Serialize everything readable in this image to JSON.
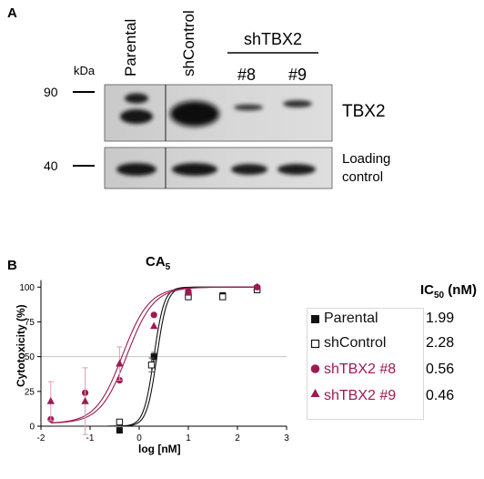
{
  "panel_a": {
    "letter": "A",
    "kda_label": "kDa",
    "markers": [
      "90",
      "40"
    ],
    "lanes": [
      "Parental",
      "shControl",
      "#8",
      "#9"
    ],
    "group_label": "shTBX2",
    "band_labels": [
      "TBX2",
      "Loading",
      "control"
    ]
  },
  "panel_b": {
    "letter": "B",
    "ic50_header_main": "IC",
    "ic50_header_sub": "50",
    "ic50_header_unit": "(nM)",
    "legend": [
      {
        "name": "Parental",
        "ic50": "1.99",
        "color": "#111111",
        "marker": "square-filled"
      },
      {
        "name": "shControl",
        "ic50": "2.28",
        "color": "#111111",
        "marker": "square-open"
      },
      {
        "name": "shTBX2 #8",
        "ic50": "0.56",
        "color": "#9c1a52",
        "marker": "circle"
      },
      {
        "name": "shTBX2 #9",
        "ic50": "0.46",
        "color": "#9c1a52",
        "marker": "triangle"
      }
    ]
  },
  "chart_data": {
    "type": "scatter",
    "title": "CA",
    "title_sub": "5",
    "xlabel": "log [nM]",
    "ylabel": "Cytotoxicity (%)",
    "xlim": [
      -2,
      3
    ],
    "ylim": [
      0,
      110
    ],
    "xticks": [
      "-2",
      "-1",
      "0",
      "1",
      "2",
      "3"
    ],
    "yticks": [
      "0",
      "25",
      "50",
      "75",
      "100"
    ],
    "reference_line_y": 50,
    "series": [
      {
        "name": "Parental",
        "x": [
          -0.4,
          0.3,
          1.0,
          1.7,
          2.4
        ],
        "y": [
          -3,
          50,
          95,
          94,
          99
        ],
        "err": [
          0,
          3,
          2,
          2,
          1
        ],
        "curve_ic50_log": 0.3
      },
      {
        "name": "shControl",
        "x": [
          -0.4,
          0.25,
          1.0,
          1.7,
          2.4
        ],
        "y": [
          3,
          44,
          93,
          93,
          98
        ],
        "err": [
          0,
          5,
          2,
          2,
          1
        ],
        "curve_ic50_log": 0.36
      },
      {
        "name": "shTBX2 #8",
        "x": [
          -1.8,
          -1.1,
          -0.4,
          0.3,
          1.0,
          2.4
        ],
        "y": [
          5,
          24,
          33,
          80,
          97,
          100
        ],
        "err": [
          0,
          0,
          0,
          0,
          0,
          0
        ],
        "curve_ic50_log": -0.25
      },
      {
        "name": "shTBX2 #9",
        "x": [
          -1.8,
          -1.1,
          -0.4,
          0.3,
          1.0,
          2.4
        ],
        "y": [
          18,
          18,
          45,
          72,
          96,
          100
        ],
        "err": [
          14,
          24,
          12,
          0,
          0,
          0
        ],
        "curve_ic50_log": -0.34
      }
    ]
  }
}
